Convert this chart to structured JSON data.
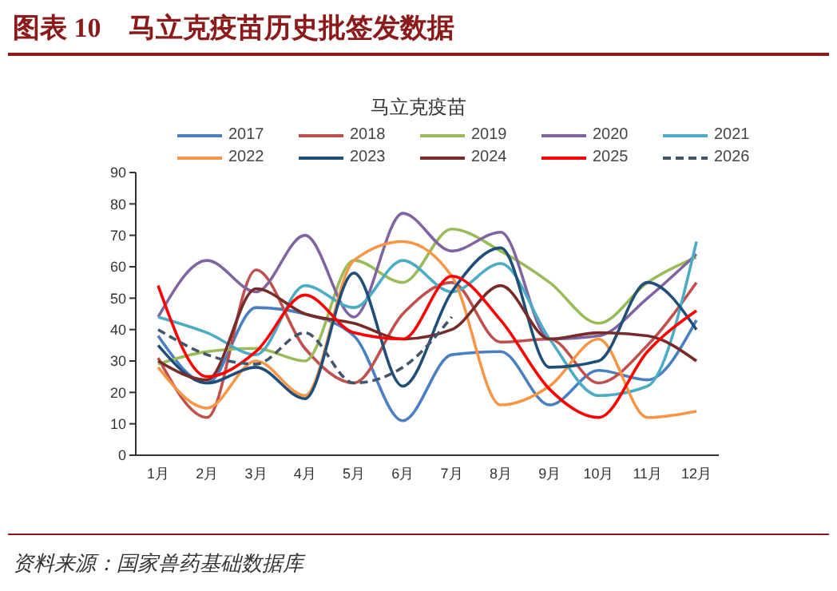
{
  "chart_data": {
    "type": "line",
    "title": "图表 10　马立克疫苗历史批签发数据",
    "subtitle": "马立克疫苗",
    "annotations": [
      "资料来源：国家兽药基础数据库"
    ],
    "categories": [
      "1月",
      "2月",
      "3月",
      "4月",
      "5月",
      "6月",
      "7月",
      "8月",
      "9月",
      "10月",
      "11月",
      "12月"
    ],
    "ylim": [
      0,
      90
    ],
    "yticks": [
      0,
      10,
      20,
      30,
      40,
      50,
      60,
      70,
      80,
      90
    ],
    "legend": "top",
    "series": [
      {
        "name": "2017",
        "color": "#4a7fc1",
        "values": [
          38,
          23,
          47,
          45,
          38,
          11,
          32,
          33,
          16,
          27,
          24,
          43
        ]
      },
      {
        "name": "2018",
        "color": "#c0504d",
        "values": [
          31,
          12,
          59,
          34,
          23,
          45,
          55,
          36,
          37,
          23,
          35,
          55
        ]
      },
      {
        "name": "2019",
        "color": "#9bbb59",
        "values": [
          29,
          33,
          34,
          30,
          62,
          55,
          72,
          65,
          55,
          42,
          55,
          63
        ]
      },
      {
        "name": "2020",
        "color": "#8064a2",
        "values": [
          44,
          62,
          52,
          70,
          44,
          77,
          65,
          71,
          37,
          38,
          50,
          64
        ]
      },
      {
        "name": "2021",
        "color": "#4bacc6",
        "values": [
          44,
          39,
          32,
          54,
          47,
          62,
          52,
          61,
          37,
          19,
          22,
          68
        ]
      },
      {
        "name": "2022",
        "color": "#f79646",
        "values": [
          28,
          15,
          30,
          19,
          62,
          68,
          57,
          16,
          22,
          37,
          12,
          14
        ]
      },
      {
        "name": "2023",
        "color": "#1f4e79",
        "values": [
          35,
          23,
          28,
          18,
          58,
          22,
          52,
          66,
          28,
          30,
          55,
          40
        ]
      },
      {
        "name": "2024",
        "color": "#772c2a",
        "values": [
          30,
          24,
          53,
          45,
          42,
          37,
          40,
          54,
          37,
          39,
          38,
          30
        ]
      },
      {
        "name": "2025",
        "color": "#ff0000",
        "values": [
          54,
          25,
          33,
          51,
          39,
          37,
          57,
          43,
          21,
          12,
          33,
          46
        ]
      },
      {
        "name": "2026",
        "color": "#44546a",
        "line_style": "dashed",
        "values": [
          40,
          32,
          29,
          39,
          23,
          28,
          44,
          null,
          null,
          null,
          null,
          null
        ]
      }
    ]
  }
}
